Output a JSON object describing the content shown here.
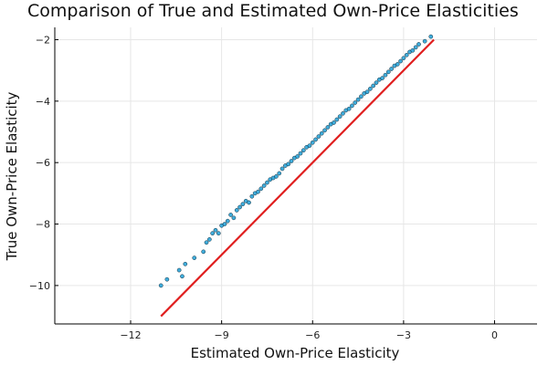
{
  "chart_data": {
    "type": "scatter",
    "title": "Comparison of True and Estimated Own-Price Elasticities",
    "xlabel": "Estimated Own-Price Elasticity",
    "ylabel": "True Own-Price Elasticity",
    "xlim": [
      -14.5,
      1.4
    ],
    "ylim": [
      -11.25,
      -1.6
    ],
    "xticks": [
      -12,
      -9,
      -6,
      -3,
      0
    ],
    "yticks": [
      -10,
      -8,
      -6,
      -4,
      -2
    ],
    "xtick_labels": [
      "−12",
      "−9",
      "−6",
      "−3",
      "0"
    ],
    "ytick_labels": [
      "−10",
      "−8",
      "−6",
      "−4",
      "−2"
    ],
    "grid": true,
    "legend": "none",
    "series": [
      {
        "kind": "scatter",
        "color": "#1f9fd6",
        "x": [
          -11.0,
          -10.8,
          -10.4,
          -10.3,
          -10.2,
          -9.9,
          -9.6,
          -9.5,
          -9.4,
          -9.3,
          -9.2,
          -9.1,
          -9.0,
          -8.9,
          -8.8,
          -8.7,
          -8.6,
          -8.5,
          -8.4,
          -8.3,
          -8.2,
          -8.1,
          -8.0,
          -7.9,
          -7.8,
          -7.7,
          -7.6,
          -7.5,
          -7.4,
          -7.3,
          -7.2,
          -7.1,
          -7.0,
          -6.9,
          -6.8,
          -6.7,
          -6.6,
          -6.5,
          -6.4,
          -6.3,
          -6.2,
          -6.1,
          -6.0,
          -5.9,
          -5.8,
          -5.7,
          -5.6,
          -5.5,
          -5.4,
          -5.3,
          -5.2,
          -5.1,
          -5.0,
          -4.9,
          -4.8,
          -4.7,
          -4.6,
          -4.5,
          -4.4,
          -4.3,
          -4.2,
          -4.1,
          -4.0,
          -3.9,
          -3.8,
          -3.7,
          -3.6,
          -3.5,
          -3.4,
          -3.3,
          -3.2,
          -3.1,
          -3.0,
          -2.9,
          -2.8,
          -2.7,
          -2.6,
          -2.5,
          -2.3,
          -2.1
        ],
        "y": [
          -10.0,
          -9.8,
          -9.5,
          -9.7,
          -9.3,
          -9.1,
          -8.9,
          -8.6,
          -8.5,
          -8.3,
          -8.2,
          -8.3,
          -8.05,
          -8.0,
          -7.9,
          -7.7,
          -7.8,
          -7.55,
          -7.45,
          -7.35,
          -7.25,
          -7.3,
          -7.1,
          -7.0,
          -6.95,
          -6.85,
          -6.75,
          -6.65,
          -6.55,
          -6.5,
          -6.45,
          -6.35,
          -6.2,
          -6.1,
          -6.05,
          -5.95,
          -5.85,
          -5.8,
          -5.7,
          -5.6,
          -5.5,
          -5.45,
          -5.35,
          -5.25,
          -5.15,
          -5.05,
          -4.95,
          -4.85,
          -4.75,
          -4.7,
          -4.6,
          -4.5,
          -4.4,
          -4.3,
          -4.25,
          -4.15,
          -4.05,
          -3.95,
          -3.85,
          -3.75,
          -3.7,
          -3.6,
          -3.5,
          -3.4,
          -3.3,
          -3.25,
          -3.15,
          -3.05,
          -2.95,
          -2.85,
          -2.8,
          -2.7,
          -2.6,
          -2.5,
          -2.4,
          -2.35,
          -2.25,
          -2.15,
          -2.05,
          -1.9
        ]
      },
      {
        "kind": "line",
        "color": "#e01f1f",
        "x": [
          -11.0,
          -2.0
        ],
        "y": [
          -11.0,
          -2.0
        ]
      }
    ]
  }
}
